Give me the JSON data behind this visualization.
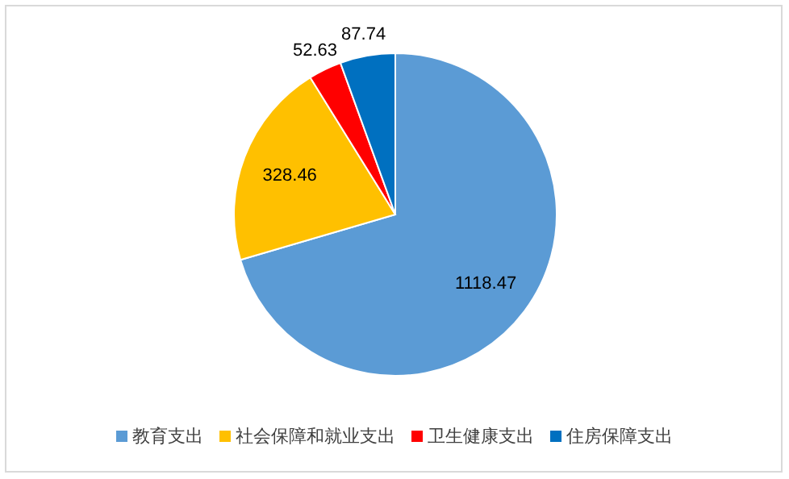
{
  "chart_data": {
    "type": "pie",
    "categories": [
      "教育支出",
      "社会保障和就业支出",
      "卫生健康支出",
      "住房保障支出"
    ],
    "values": [
      1118.47,
      328.46,
      52.63,
      87.74
    ],
    "colors": [
      "#5b9bd5",
      "#ffc000",
      "#ff0000",
      "#0070c0"
    ],
    "data_labels": true,
    "legend": "bottom"
  }
}
